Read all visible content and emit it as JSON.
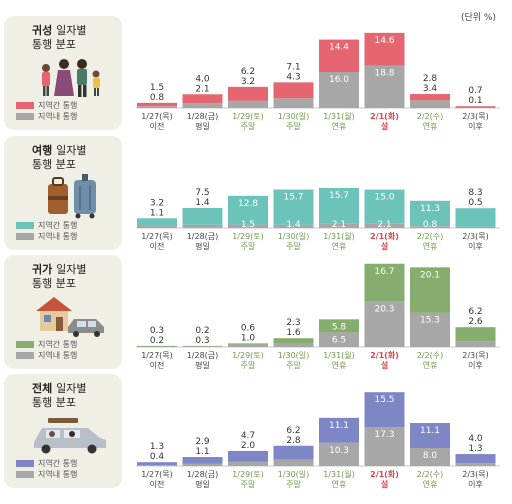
{
  "unit_label": "(단위 %)",
  "legend": {
    "inter": "지역간 통행",
    "intra": "지역내 통행"
  },
  "colors": {
    "gray": "#a7a7a7",
    "red": "#e56670",
    "teal": "#6cc3ba",
    "green": "#86ac6e",
    "blue": "#7f86c6",
    "date_green": "#6f9a4a",
    "date_red": "#d8474f",
    "panel_bg": "#f0efe6"
  },
  "panels": [
    {
      "title_bold": "귀성",
      "title_rest": "일자별",
      "title_line2": "통행 분포",
      "icon": "family-icon"
    },
    {
      "title_bold": "여행",
      "title_rest": "일자별",
      "title_line2": "통행 분포",
      "icon": "luggage-icon"
    },
    {
      "title_bold": "귀가",
      "title_rest": "일자별",
      "title_line2": "통행 분포",
      "icon": "house-car-icon"
    },
    {
      "title_bold": "전체",
      "title_rest": "일자별",
      "title_line2": "통행 분포",
      "icon": "car-icon"
    }
  ],
  "chart_data": {
    "type": "bar",
    "stacked": true,
    "categories": [
      {
        "date": "1/27(목)",
        "label": "이전",
        "style": "normal"
      },
      {
        "date": "1/28(금)",
        "label": "평일",
        "style": "normal"
      },
      {
        "date": "1/29(토)",
        "label": "주말",
        "style": "green"
      },
      {
        "date": "1/30(일)",
        "label": "주말",
        "style": "green"
      },
      {
        "date": "1/31(월)",
        "label": "연휴",
        "style": "green"
      },
      {
        "date": "2/1(화)",
        "label": "설",
        "style": "red"
      },
      {
        "date": "2/2(수)",
        "label": "연휴",
        "style": "green"
      },
      {
        "date": "2/3(목)",
        "label": "이후",
        "style": "normal"
      }
    ],
    "ylim": [
      0,
      40
    ],
    "panels": [
      {
        "name": "귀성",
        "color": "#e56670",
        "inter": [
          1.5,
          4.0,
          6.2,
          7.1,
          14.4,
          14.6,
          2.8,
          0.7
        ],
        "intra": [
          0.8,
          2.1,
          3.2,
          4.3,
          16.0,
          18.8,
          3.4,
          0.1
        ]
      },
      {
        "name": "여행",
        "color": "#6cc3ba",
        "inter": [
          3.2,
          7.5,
          12.8,
          15.7,
          15.7,
          15.0,
          11.3,
          8.3
        ],
        "intra": [
          1.1,
          1.4,
          1.5,
          1.4,
          2.1,
          2.1,
          0.8,
          0.5
        ]
      },
      {
        "name": "귀가",
        "color": "#86ac6e",
        "inter": [
          0.3,
          0.2,
          0.6,
          2.3,
          5.8,
          16.7,
          20.1,
          6.2
        ],
        "intra": [
          0.2,
          0.3,
          1.0,
          1.6,
          6.5,
          20.3,
          15.3,
          2.6
        ]
      },
      {
        "name": "전체",
        "color": "#7f86c6",
        "inter": [
          1.3,
          2.9,
          4.7,
          6.2,
          11.1,
          15.5,
          11.1,
          4.0
        ],
        "intra": [
          0.4,
          1.1,
          2.0,
          2.8,
          10.3,
          17.3,
          8.0,
          1.3
        ]
      }
    ]
  }
}
